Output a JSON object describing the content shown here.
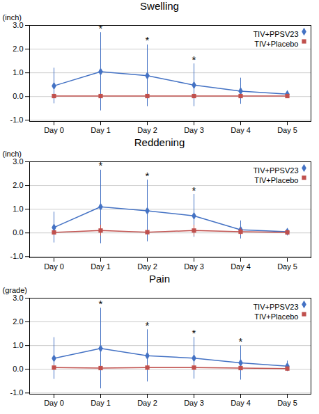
{
  "chart_data": [
    {
      "type": "line",
      "title": "Swelling",
      "ylabel": "(inch)",
      "categories": [
        "Day 0",
        "Day 1",
        "Day 2",
        "Day 3",
        "Day 4",
        "Day 5"
      ],
      "series": [
        {
          "name": "TIV+PPSV23",
          "color": "#4472C4",
          "marker": "diamond",
          "values": [
            0.45,
            1.05,
            0.88,
            0.48,
            0.23,
            0.1
          ],
          "yerr": [
            0.75,
            1.65,
            1.3,
            0.9,
            0.55,
            0.12
          ]
        },
        {
          "name": "TIV+Placebo",
          "color": "#C0504D",
          "marker": "square",
          "values": [
            0.02,
            0.02,
            0.02,
            0.02,
            0.02,
            0.02
          ],
          "yerr": [
            0.03,
            0.03,
            0.03,
            0.03,
            0.03,
            0.03
          ]
        }
      ],
      "ylim": [
        -1.05,
        3.0
      ],
      "yticks": [
        {
          "value": -1,
          "label": "-1.0"
        },
        {
          "value": 0,
          "label": "0.0"
        },
        {
          "value": 1,
          "label": "1.0"
        },
        {
          "value": 2,
          "label": "2.0"
        },
        {
          "value": 3,
          "label": "3.0"
        }
      ],
      "grid": true,
      "legend": "upper right",
      "annotations": [
        {
          "text": "*",
          "x": "Day 1",
          "series": "TIV+PPSV23"
        },
        {
          "text": "*",
          "x": "Day 2",
          "series": "TIV+PPSV23"
        },
        {
          "text": "*",
          "x": "Day 3",
          "series": "TIV+PPSV23"
        }
      ]
    },
    {
      "type": "line",
      "title": "Reddening",
      "ylabel": "(inch)",
      "categories": [
        "Day 0",
        "Day 1",
        "Day 2",
        "Day 3",
        "Day 4",
        "Day 5"
      ],
      "series": [
        {
          "name": "TIV+PPSV23",
          "color": "#4472C4",
          "marker": "diamond",
          "values": [
            0.23,
            1.1,
            0.93,
            0.72,
            0.13,
            0.05
          ],
          "yerr": [
            0.65,
            1.55,
            1.3,
            0.9,
            0.38,
            0.1
          ]
        },
        {
          "name": "TIV+Placebo",
          "color": "#C0504D",
          "marker": "square",
          "values": [
            0.02,
            0.1,
            0.03,
            0.1,
            0.05,
            0.02
          ],
          "yerr": [
            0.03,
            0.23,
            0.05,
            0.23,
            0.15,
            0.03
          ]
        }
      ],
      "ylim": [
        -1.05,
        3.0
      ],
      "yticks": [
        {
          "value": -1,
          "label": "-1.0"
        },
        {
          "value": 0,
          "label": "0.0"
        },
        {
          "value": 1,
          "label": "1.0"
        },
        {
          "value": 2,
          "label": "2.0"
        },
        {
          "value": 3,
          "label": "3.0"
        }
      ],
      "grid": true,
      "legend": "upper right",
      "annotations": [
        {
          "text": "*",
          "x": "Day 1",
          "series": "TIV+PPSV23"
        },
        {
          "text": "*",
          "x": "Day 2",
          "series": "TIV+PPSV23"
        },
        {
          "text": "*",
          "x": "Day 3",
          "series": "TIV+PPSV23"
        }
      ]
    },
    {
      "type": "line",
      "title": "Pain",
      "ylabel": "(grade)",
      "categories": [
        "Day 0",
        "Day 1",
        "Day 2",
        "Day 3",
        "Day 4",
        "Day 5"
      ],
      "series": [
        {
          "name": "TIV+PPSV23",
          "color": "#4472C4",
          "marker": "diamond",
          "values": [
            0.46,
            0.88,
            0.57,
            0.47,
            0.27,
            0.13
          ],
          "yerr": [
            0.88,
            1.7,
            1.1,
            0.88,
            0.72,
            0.22
          ]
        },
        {
          "name": "TIV+Placebo",
          "color": "#C0504D",
          "marker": "square",
          "values": [
            0.07,
            0.05,
            0.07,
            0.07,
            0.05,
            0.03
          ],
          "yerr": [
            0.1,
            0.07,
            0.1,
            0.1,
            0.07,
            0.05
          ]
        }
      ],
      "ylim": [
        -1.05,
        3.0
      ],
      "yticks": [
        {
          "value": -1,
          "label": "-1.0"
        },
        {
          "value": 0,
          "label": "0.0"
        },
        {
          "value": 1,
          "label": "1.0"
        },
        {
          "value": 2,
          "label": "2.0"
        },
        {
          "value": 3,
          "label": "3.0"
        }
      ],
      "grid": true,
      "legend": "upper right",
      "annotations": [
        {
          "text": "*",
          "x": "Day 1",
          "series": "TIV+PPSV23"
        },
        {
          "text": "*",
          "x": "Day 2",
          "series": "TIV+PPSV23"
        },
        {
          "text": "*",
          "x": "Day 3",
          "series": "TIV+PPSV23"
        },
        {
          "text": "*",
          "x": "Day 4",
          "series": "TIV+PPSV23"
        }
      ]
    }
  ]
}
